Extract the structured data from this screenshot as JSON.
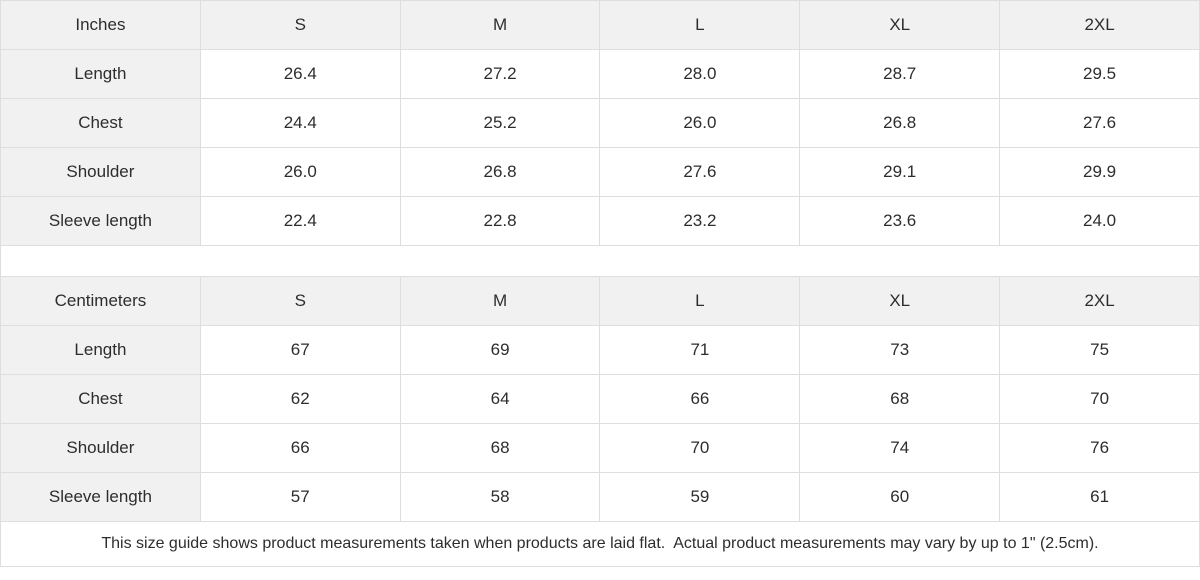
{
  "chart_data": [
    {
      "type": "table",
      "title": "Inches",
      "columns": [
        "S",
        "M",
        "L",
        "XL",
        "2XL"
      ],
      "rows": [
        {
          "label": "Length",
          "values": [
            "26.4",
            "27.2",
            "28.0",
            "28.7",
            "29.5"
          ]
        },
        {
          "label": "Chest",
          "values": [
            "24.4",
            "25.2",
            "26.0",
            "26.8",
            "27.6"
          ]
        },
        {
          "label": "Shoulder",
          "values": [
            "26.0",
            "26.8",
            "27.6",
            "29.1",
            "29.9"
          ]
        },
        {
          "label": "Sleeve length",
          "values": [
            "22.4",
            "22.8",
            "23.2",
            "23.6",
            "24.0"
          ]
        }
      ]
    },
    {
      "type": "table",
      "title": "Centimeters",
      "columns": [
        "S",
        "M",
        "L",
        "XL",
        "2XL"
      ],
      "rows": [
        {
          "label": "Length",
          "values": [
            "67",
            "69",
            "71",
            "73",
            "75"
          ]
        },
        {
          "label": "Chest",
          "values": [
            "62",
            "64",
            "66",
            "68",
            "70"
          ]
        },
        {
          "label": "Shoulder",
          "values": [
            "66",
            "68",
            "70",
            "74",
            "76"
          ]
        },
        {
          "label": "Sleeve length",
          "values": [
            "57",
            "58",
            "59",
            "60",
            "61"
          ]
        }
      ]
    }
  ],
  "footer": {
    "note": "This size guide shows product measurements taken when products are laid flat.  Actual product measurements may vary by up to 1\" (2.5cm)."
  },
  "colors": {
    "header_bg": "#f1f1f1",
    "cell_bg": "#ffffff",
    "border": "#dedede",
    "text": "#2d2d2d"
  }
}
